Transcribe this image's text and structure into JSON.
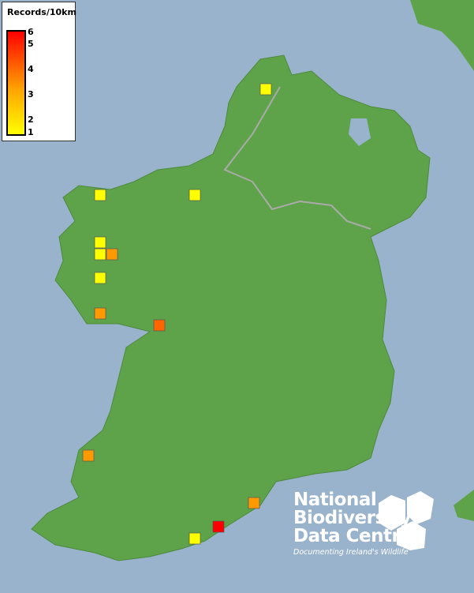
{
  "legend": {
    "title": "Records/10km",
    "ticks": [
      "6",
      "5",
      "4",
      "3",
      "2",
      "1"
    ],
    "scale_min": 1,
    "scale_max": 6,
    "colors": {
      "low": "#ffff00",
      "mid": "#ffa000",
      "high": "#ff0000"
    }
  },
  "map": {
    "sea_color": "#9ab3cc",
    "land_color": "#5ea34a",
    "squares": [
      {
        "records": 1
      },
      {
        "records": 1
      },
      {
        "records": 1
      },
      {
        "records": 1
      },
      {
        "records": 1
      },
      {
        "records": 3
      },
      {
        "records": 1
      },
      {
        "records": 3
      },
      {
        "records": 4
      },
      {
        "records": 3
      },
      {
        "records": 3
      },
      {
        "records": 6
      },
      {
        "records": 1
      }
    ]
  },
  "logo": {
    "line1": "National",
    "line2": "Biodiversity",
    "line3": "Data Centre",
    "tagline": "Documenting Ireland's Wildlife"
  }
}
